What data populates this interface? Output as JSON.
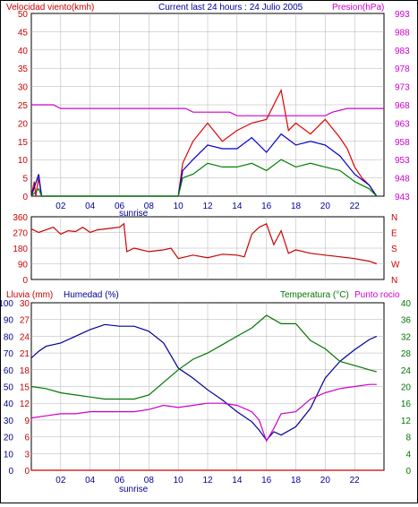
{
  "colors": {
    "wind": "#e00000",
    "gust": "#0000cc",
    "avg": "#008000",
    "pressure": "#cc00cc",
    "direction": "#cc0000",
    "humidity": "#000099",
    "temperature": "#007700",
    "dewpoint": "#cc00cc",
    "rain": "#cc0000",
    "grid": "#b0b0b0",
    "axis_left_top": "#cc0000",
    "axis_right_top": "#cc00cc"
  },
  "header": {
    "left": "Velocidad viento(kmh)",
    "center": "Current last 24 hours : 24 Julio 2005",
    "right": "Presion(hPa)"
  },
  "panel3_header": {
    "rain": "Lluvia (mm)",
    "humidity": "Humedad (%)",
    "temp": "Temperatura (°C)",
    "dew": "Punto rocio"
  },
  "x_ticks": [
    "02",
    "04",
    "06",
    "08",
    "10",
    "12",
    "14",
    "16",
    "18",
    "20",
    "22"
  ],
  "sunrise_label": "sunrise",
  "panel1": {
    "y_left": [
      "0",
      "5",
      "10",
      "15",
      "20",
      "25",
      "30",
      "35",
      "40",
      "45",
      "50"
    ],
    "y_right": [
      "943",
      "948",
      "953",
      "958",
      "963",
      "968",
      "973",
      "978",
      "983",
      "988",
      "993"
    ]
  },
  "panel2": {
    "y_left": [
      "0",
      "90",
      "180",
      "270",
      "360"
    ],
    "y_right": [
      "N",
      "W",
      "S",
      "E",
      "N"
    ]
  },
  "panel3": {
    "y_left_rain": [
      "0",
      "3",
      "6",
      "9",
      "12",
      "15",
      "18",
      "21",
      "24",
      "27",
      "30"
    ],
    "y_left_hum": [
      "0",
      "10",
      "20",
      "30",
      "40",
      "50",
      "60",
      "70",
      "80",
      "90",
      "100"
    ],
    "y_right_temp": [
      "0",
      "4",
      "8",
      "12",
      "16",
      "20",
      "24",
      "28",
      "32",
      "36",
      "40"
    ]
  },
  "chart_data": [
    {
      "type": "line",
      "title": "Current last 24 hours : 24 Julio 2005",
      "x_range_hours": [
        0,
        24
      ],
      "ylabel": "Velocidad viento(kmh)",
      "ylim": [
        0,
        50
      ],
      "y2label": "Presion(hPa)",
      "y2lim": [
        943,
        993
      ],
      "series": [
        {
          "name": "Presion(hPa)",
          "axis": "right",
          "x": [
            0,
            1.5,
            2.0,
            3,
            9,
            10.5,
            11,
            13.5,
            14,
            17.5,
            18,
            20,
            20.5,
            21.5,
            22,
            24
          ],
          "values": [
            968,
            968,
            967,
            967,
            967,
            967,
            966,
            966,
            965,
            965,
            965,
            965,
            966,
            967,
            967,
            967
          ]
        },
        {
          "name": "Velocidad viento(kmh)",
          "axis": "left",
          "x": [
            0,
            0.2,
            0.3,
            0.5,
            0.7,
            10,
            10.3,
            11,
            12,
            13,
            14,
            15,
            16,
            17,
            17.5,
            18,
            19,
            20,
            21,
            21.5,
            22,
            22.5,
            23,
            23.5
          ],
          "values": [
            0,
            4,
            0,
            5,
            0,
            0,
            9,
            15,
            20,
            15,
            18,
            20,
            21,
            29,
            18,
            20,
            17,
            21,
            16,
            13,
            8,
            5,
            3,
            0
          ]
        },
        {
          "name": "",
          "axis": "left",
          "x": [
            0,
            0.5,
            0.7,
            10,
            10.3,
            11,
            12,
            13,
            14,
            15,
            16,
            17,
            18,
            19,
            20,
            21,
            22,
            23,
            23.5
          ],
          "values": [
            0,
            6,
            0,
            0,
            7,
            10,
            14,
            13,
            13,
            16,
            12,
            17,
            14,
            15,
            14,
            11,
            6,
            3,
            0
          ]
        },
        {
          "name": "",
          "axis": "left",
          "x": [
            0,
            0.5,
            0.7,
            10,
            10.3,
            11,
            12,
            13,
            14,
            15,
            16,
            17,
            18,
            19,
            20,
            21,
            22,
            23,
            23.5
          ],
          "values": [
            0,
            2,
            0,
            0,
            5,
            6,
            9,
            8,
            8,
            9,
            7,
            10,
            8,
            9,
            8,
            7,
            4,
            2,
            0
          ]
        }
      ]
    },
    {
      "type": "line",
      "x_range_hours": [
        0,
        24
      ],
      "ylim": [
        0,
        360
      ],
      "y_ticks": [
        "0",
        "90",
        "180",
        "270",
        "360"
      ],
      "y2_ticks": [
        "N",
        "W",
        "S",
        "E",
        "N"
      ],
      "series": [
        {
          "name": "",
          "x": [
            0,
            0.5,
            1,
            1.5,
            2,
            2.5,
            3,
            3.5,
            4,
            4.5,
            5,
            5.5,
            6,
            6.3,
            6.5,
            7,
            8,
            9,
            9.5,
            10,
            10.5,
            11,
            12,
            13,
            14,
            14.5,
            15,
            15.5,
            16,
            16.5,
            17,
            17.5,
            18,
            19,
            20,
            21,
            22,
            23,
            23.5
          ],
          "values": [
            290,
            270,
            285,
            300,
            260,
            280,
            275,
            300,
            270,
            285,
            290,
            295,
            300,
            320,
            160,
            180,
            160,
            170,
            180,
            120,
            130,
            140,
            125,
            145,
            140,
            130,
            260,
            300,
            320,
            200,
            280,
            150,
            170,
            150,
            140,
            130,
            120,
            105,
            90
          ]
        }
      ]
    },
    {
      "type": "line",
      "x_range_hours": [
        0,
        24
      ],
      "ylabel": "Lluvia (mm) / Humedad (%)",
      "ylim": [
        0,
        100
      ],
      "y2label": "Temperatura (°C)",
      "y2lim": [
        0,
        40
      ],
      "series": [
        {
          "name": "Lluvia (mm)",
          "axis": "left",
          "x": [
            0,
            24
          ],
          "values": [
            0,
            0
          ]
        },
        {
          "name": "Humedad (%)",
          "axis": "left",
          "x": [
            0,
            0.5,
            1,
            2,
            3,
            4,
            5,
            6,
            7,
            8,
            9,
            10,
            11,
            12,
            13,
            14,
            15,
            15.5,
            16,
            16.5,
            17,
            18,
            19,
            20,
            21,
            22,
            23,
            23.5
          ],
          "values": [
            67,
            71,
            74,
            76,
            80,
            84,
            87,
            86,
            86,
            83,
            76,
            61,
            55,
            48,
            42,
            35,
            29,
            24,
            18,
            23,
            21,
            26,
            37,
            55,
            65,
            72,
            78,
            80
          ]
        },
        {
          "name": "Temperatura (°C)",
          "axis": "right",
          "x": [
            0,
            1,
            2,
            3,
            4,
            5,
            6,
            7,
            8,
            9,
            10,
            11,
            12,
            13,
            14,
            15,
            16,
            16.5,
            17,
            18,
            19,
            20,
            21,
            22,
            23,
            23.5
          ],
          "values": [
            20,
            19.5,
            18.5,
            18,
            17.5,
            17,
            17,
            17,
            18,
            21,
            24,
            26.5,
            28,
            30,
            32,
            34,
            37,
            36,
            35,
            35,
            31,
            29,
            26,
            25,
            24,
            23.5
          ]
        },
        {
          "name": "Punto rocio",
          "axis": "right",
          "x": [
            0,
            1,
            2,
            3,
            4,
            5,
            6,
            7,
            8,
            9,
            10,
            11,
            12,
            13,
            14,
            15,
            15.5,
            16,
            16.5,
            17,
            18,
            19,
            20,
            21,
            22,
            23,
            23.5
          ],
          "values": [
            12.5,
            13,
            13.5,
            13.5,
            14,
            14,
            14,
            14,
            14.5,
            15.5,
            15,
            15.5,
            16,
            16,
            15.5,
            14,
            12,
            7,
            10,
            13.5,
            14,
            17,
            18.5,
            19.5,
            20,
            20.5,
            20.5
          ]
        }
      ]
    }
  ]
}
